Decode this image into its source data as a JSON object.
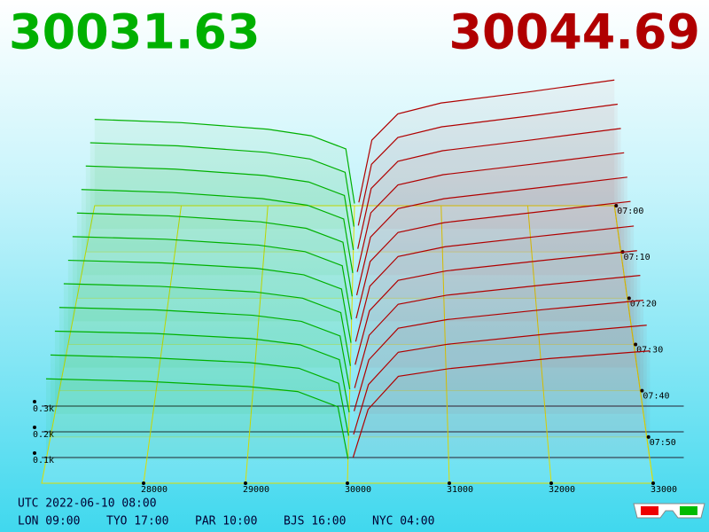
{
  "chart_data": {
    "type": "depth3d",
    "bid_price": 30031.63,
    "ask_price": 30044.69,
    "bid_color": "#00b000",
    "ask_color": "#b00000",
    "utc": "UTC 2022-06-10 08:00",
    "clocks": [
      "LON 09:00",
      "TYO 17:00",
      "PAR 10:00",
      "BJS 16:00",
      "NYC 04:00"
    ],
    "xlim": [
      27000,
      33000
    ],
    "xticks": [
      28000,
      29000,
      30000,
      31000,
      32000,
      33000
    ],
    "zticks": [
      {
        "value": 100,
        "label": "0.1k"
      },
      {
        "value": 200,
        "label": "0.2k"
      },
      {
        "value": 300,
        "label": "0.3k"
      }
    ],
    "time_ticks": [
      "07:00",
      "07:10",
      "07:20",
      "07:30",
      "07:40",
      "07:50"
    ],
    "bid_prices": [
      27000,
      28000,
      29000,
      29500,
      29900,
      30000
    ],
    "ask_prices": [
      30050,
      30200,
      30500,
      31000,
      32000,
      33000
    ],
    "bid_depth": [
      [
        395,
        380,
        350,
        320,
        260,
        10
      ],
      [
        388,
        374,
        345,
        315,
        255,
        10
      ],
      [
        382,
        368,
        340,
        311,
        251,
        9
      ],
      [
        375,
        362,
        335,
        306,
        246,
        9
      ],
      [
        368,
        356,
        330,
        302,
        242,
        8
      ],
      [
        361,
        350,
        325,
        297,
        237,
        8
      ],
      [
        354,
        343,
        320,
        293,
        233,
        7
      ],
      [
        348,
        337,
        314,
        288,
        228,
        7
      ],
      [
        341,
        331,
        309,
        284,
        224,
        6
      ],
      [
        334,
        325,
        304,
        279,
        219,
        6
      ],
      [
        327,
        316,
        297,
        274,
        214,
        5
      ],
      [
        320,
        310,
        290,
        270,
        210,
        5
      ]
    ],
    "ask_depth": [
      [
        15,
        300,
        420,
        470,
        520,
        575
      ],
      [
        15,
        291,
        412,
        460,
        509,
        562
      ],
      [
        14,
        282,
        403,
        450,
        498,
        549
      ],
      [
        14,
        273,
        395,
        440,
        487,
        536
      ],
      [
        13,
        264,
        387,
        430,
        476,
        523
      ],
      [
        13,
        255,
        379,
        421,
        466,
        511
      ],
      [
        12,
        245,
        370,
        411,
        455,
        498
      ],
      [
        12,
        236,
        362,
        401,
        444,
        485
      ],
      [
        11,
        227,
        354,
        391,
        433,
        472
      ],
      [
        11,
        218,
        346,
        381,
        422,
        459
      ],
      [
        10,
        209,
        338,
        370,
        411,
        446
      ],
      [
        10,
        200,
        330,
        360,
        400,
        430
      ]
    ]
  }
}
